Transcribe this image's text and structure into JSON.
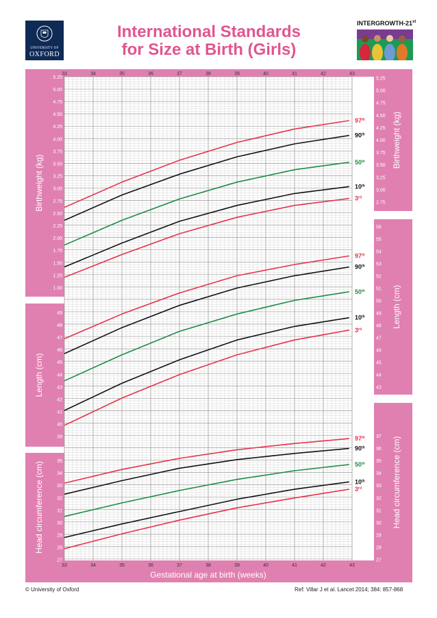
{
  "header": {
    "logo": {
      "line1": "UNIVERSITY OF",
      "line2": "OXFORD",
      "icon": "oxford-crest-icon"
    },
    "title_line1": "International Standards",
    "title_line2": "for Size at Birth (Girls)",
    "brand": "INTERGROWTH-21",
    "brand_sup": "st"
  },
  "footer": {
    "copyright": "© University of Oxford",
    "reference": "Ref: Villar J et al. Lancet 2014; 384: 857-868"
  },
  "colors": {
    "accent": "#e080b0",
    "red": "#e8304a",
    "black": "#111111",
    "green": "#1f8a47",
    "grid": "#c8c8c8"
  },
  "chart_data": {
    "type": "line",
    "xlabel": "Gestational age at birth (weeks)",
    "x_ticks": [
      33,
      34,
      35,
      36,
      37,
      38,
      39,
      40,
      41,
      42,
      43
    ],
    "xlim": [
      33,
      43
    ],
    "panels": [
      {
        "ylabel": "Birthweight (kg)",
        "left_ticks": [
          "1.00",
          "1.25",
          "1.50",
          "1.75",
          "2.00",
          "2.25",
          "2.50",
          "2.75",
          "3.00",
          "3.25",
          "3.50",
          "3.75",
          "4.00",
          "4.25",
          "4.50",
          "4.75",
          "5.00",
          "5.25"
        ],
        "right_ticks": [
          "2.75",
          "3.00",
          "3.25",
          "3.50",
          "3.75",
          "4.00",
          "4.25",
          "4.50",
          "4.75",
          "5.00",
          "5.25"
        ],
        "series": [
          {
            "name": "97th",
            "label": "97",
            "sup": "th",
            "color": "red",
            "x": [
              33,
              35,
              37,
              39,
              41,
              42.9
            ],
            "y": [
              2.62,
              3.13,
              3.57,
              3.93,
              4.2,
              4.37
            ]
          },
          {
            "name": "90th",
            "label": "90",
            "sup": "th",
            "color": "black",
            "x": [
              33,
              35,
              37,
              39,
              41,
              42.9
            ],
            "y": [
              2.36,
              2.87,
              3.29,
              3.64,
              3.9,
              4.07
            ]
          },
          {
            "name": "50th",
            "label": "50",
            "sup": "th",
            "color": "green",
            "x": [
              33,
              35,
              37,
              39,
              41,
              42.9
            ],
            "y": [
              1.86,
              2.36,
              2.79,
              3.13,
              3.38,
              3.53
            ]
          },
          {
            "name": "10th",
            "label": "10",
            "sup": "th",
            "color": "black",
            "x": [
              33,
              35,
              37,
              39,
              41,
              42.9
            ],
            "y": [
              1.42,
              1.9,
              2.34,
              2.66,
              2.9,
              3.04
            ]
          },
          {
            "name": "3rd",
            "label": "3",
            "sup": "rd",
            "color": "red",
            "x": [
              33,
              35,
              37,
              39,
              41,
              42.9
            ],
            "y": [
              1.21,
              1.67,
              2.09,
              2.42,
              2.66,
              2.8
            ]
          }
        ]
      },
      {
        "ylabel": "Length (cm)",
        "left_ticks": [
          "39",
          "40",
          "41",
          "42",
          "43",
          "44",
          "45",
          "46",
          "47",
          "48",
          "49"
        ],
        "right_ticks": [
          "43",
          "44",
          "45",
          "46",
          "47",
          "48",
          "49",
          "50",
          "51",
          "52",
          "53",
          "54",
          "55",
          "56"
        ],
        "series": [
          {
            "name": "97th",
            "label": "97",
            "sup": "th",
            "color": "red",
            "x": [
              33,
              35,
              37,
              39,
              41,
              42.9
            ],
            "y": [
              46.9,
              48.9,
              50.6,
              52.0,
              52.9,
              53.6
            ]
          },
          {
            "name": "90th",
            "label": "90",
            "sup": "th",
            "color": "black",
            "x": [
              33,
              35,
              37,
              39,
              41,
              42.9
            ],
            "y": [
              45.7,
              47.8,
              49.6,
              51.0,
              52.0,
              52.7
            ]
          },
          {
            "name": "50th",
            "label": "50",
            "sup": "th",
            "color": "green",
            "x": [
              33,
              35,
              37,
              39,
              41,
              42.9
            ],
            "y": [
              43.5,
              45.6,
              47.5,
              48.9,
              50.0,
              50.7
            ]
          },
          {
            "name": "10th",
            "label": "10",
            "sup": "th",
            "color": "black",
            "x": [
              33,
              35,
              37,
              39,
              41,
              42.9
            ],
            "y": [
              41.1,
              43.3,
              45.2,
              46.8,
              47.9,
              48.6
            ]
          },
          {
            "name": "3rd",
            "label": "3",
            "sup": "rd",
            "color": "red",
            "x": [
              33,
              35,
              37,
              39,
              41,
              42.9
            ],
            "y": [
              39.9,
              42.1,
              44.0,
              45.6,
              46.8,
              47.6
            ]
          }
        ]
      },
      {
        "ylabel": "Head circumference (cm)",
        "left_ticks": [
          "27",
          "28",
          "29",
          "30",
          "31",
          "32",
          "33",
          "34",
          "35"
        ],
        "right_ticks": [
          "27",
          "28",
          "29",
          "30",
          "31",
          "32",
          "33",
          "34",
          "35",
          "36",
          "37"
        ],
        "series": [
          {
            "name": "97th",
            "label": "97",
            "sup": "th",
            "color": "red",
            "x": [
              33,
              35,
              37,
              39,
              41,
              42.9
            ],
            "y": [
              33.2,
              34.3,
              35.2,
              35.9,
              36.4,
              36.8
            ]
          },
          {
            "name": "90th",
            "label": "90",
            "sup": "th",
            "color": "black",
            "x": [
              33,
              35,
              37,
              39,
              41,
              42.9
            ],
            "y": [
              32.3,
              33.4,
              34.4,
              35.1,
              35.6,
              36.0
            ]
          },
          {
            "name": "50th",
            "label": "50",
            "sup": "th",
            "color": "green",
            "x": [
              33,
              35,
              37,
              39,
              41,
              42.9
            ],
            "y": [
              30.5,
              31.6,
              32.6,
              33.5,
              34.2,
              34.7
            ]
          },
          {
            "name": "10th",
            "label": "10",
            "sup": "th",
            "color": "black",
            "x": [
              33,
              35,
              37,
              39,
              41,
              42.9
            ],
            "y": [
              28.8,
              29.9,
              30.9,
              31.9,
              32.7,
              33.3
            ]
          },
          {
            "name": "3rd",
            "label": "3",
            "sup": "rd",
            "color": "red",
            "x": [
              33,
              35,
              37,
              39,
              41,
              42.9
            ],
            "y": [
              27.9,
              29.1,
              30.2,
              31.2,
              32.0,
              32.7
            ]
          }
        ]
      }
    ]
  }
}
